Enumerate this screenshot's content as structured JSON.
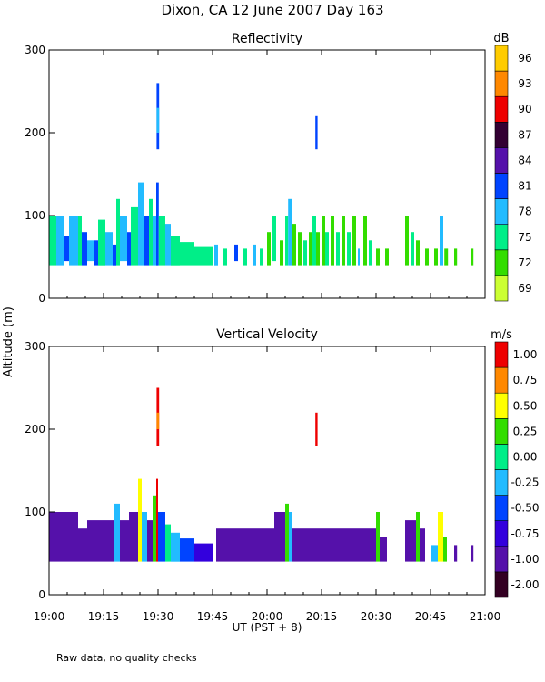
{
  "figure": {
    "title": "Dixon, CA 12 June 2007  Day 163",
    "xlabel": "UT  (PST + 8)",
    "ylabel": "Altitude (m)",
    "footnote": "Raw data, no quality checks"
  },
  "chart_data": [
    {
      "type": "heatmap",
      "title": "Reflectivity",
      "colorbar_label": "dB",
      "colorbar_ticks": [
        "69",
        "72",
        "75",
        "78",
        "81",
        "84",
        "87",
        "90",
        "93",
        "96"
      ],
      "colorbar_colors": [
        "#ccff33",
        "#33dd00",
        "#00ee88",
        "#22bbff",
        "#0044ff",
        "#5511aa",
        "#330033",
        "#ee0000",
        "#ff8800",
        "#ffcc00"
      ],
      "x_ticks": [
        "19:00",
        "19:15",
        "19:30",
        "19:45",
        "20:00",
        "20:15",
        "20:30",
        "20:45",
        "21:00"
      ],
      "x_range_min": [
        0,
        120
      ],
      "y_ticks": [
        "0",
        "100",
        "200",
        "300"
      ],
      "ylim": [
        0,
        300
      ],
      "cells": [
        [
          0,
          40,
          75,
          2,
          100
        ],
        [
          2,
          40,
          78,
          4,
          100
        ],
        [
          4,
          45,
          81,
          5.5,
          75
        ],
        [
          5.5,
          40,
          78,
          8,
          100
        ],
        [
          8,
          40,
          75,
          9,
          100
        ],
        [
          9,
          40,
          81,
          10.5,
          80
        ],
        [
          10.5,
          45,
          78,
          12.5,
          70
        ],
        [
          12.5,
          40,
          81,
          13.5,
          70
        ],
        [
          13.5,
          40,
          75,
          15.5,
          95
        ],
        [
          15.5,
          40,
          78,
          17.5,
          80
        ],
        [
          17.5,
          40,
          81,
          18.5,
          65
        ],
        [
          18.5,
          40,
          75,
          19.5,
          120
        ],
        [
          19.5,
          45,
          78,
          21.5,
          100
        ],
        [
          21.5,
          40,
          81,
          22.5,
          80
        ],
        [
          22.5,
          40,
          75,
          24.5,
          110
        ],
        [
          24.5,
          40,
          78,
          26,
          140
        ],
        [
          26,
          40,
          81,
          27.5,
          100
        ],
        [
          27.5,
          40,
          75,
          28.5,
          120
        ],
        [
          28.5,
          40,
          78,
          30,
          100
        ],
        [
          29.5,
          40,
          81,
          30.2,
          140
        ],
        [
          30.2,
          40,
          75,
          32,
          100
        ],
        [
          32,
          40,
          78,
          33.5,
          90
        ],
        [
          33.5,
          40,
          75,
          36,
          75
        ],
        [
          36,
          40,
          75,
          40,
          68
        ],
        [
          40,
          40,
          75,
          45,
          62
        ],
        [
          45.5,
          40,
          78,
          46.5,
          65
        ],
        [
          48,
          40,
          75,
          49,
          60
        ],
        [
          51,
          45,
          81,
          52,
          65
        ],
        [
          53.5,
          40,
          75,
          54.5,
          60
        ],
        [
          56,
          40,
          78,
          57,
          65
        ],
        [
          58,
          40,
          75,
          59,
          60
        ],
        [
          60,
          40,
          72,
          61,
          80
        ],
        [
          61.5,
          45,
          75,
          62.5,
          100
        ],
        [
          63.5,
          40,
          72,
          64.5,
          70
        ],
        [
          65,
          40,
          75,
          65.8,
          100
        ],
        [
          65.8,
          40,
          78,
          66.8,
          120
        ],
        [
          66.8,
          40,
          72,
          68,
          90
        ],
        [
          68.5,
          40,
          72,
          69.5,
          80
        ],
        [
          70,
          40,
          75,
          71,
          70
        ],
        [
          71.5,
          40,
          72,
          72.5,
          80
        ],
        [
          72.5,
          40,
          75,
          73.5,
          100
        ],
        [
          73.5,
          40,
          72,
          74.5,
          80
        ],
        [
          75,
          40,
          72,
          76,
          100
        ],
        [
          76,
          40,
          75,
          77,
          80
        ],
        [
          77.5,
          40,
          72,
          78.5,
          100
        ],
        [
          79,
          40,
          75,
          80,
          80
        ],
        [
          80.5,
          40,
          72,
          81.5,
          100
        ],
        [
          82,
          40,
          75,
          83,
          80
        ],
        [
          83.5,
          40,
          72,
          84.5,
          100
        ],
        [
          85,
          40,
          78,
          85.5,
          60
        ],
        [
          86.5,
          40,
          72,
          87.5,
          100
        ],
        [
          88,
          40,
          75,
          89,
          70
        ],
        [
          90,
          40,
          72,
          91,
          60
        ],
        [
          92.5,
          40,
          72,
          93.5,
          60
        ],
        [
          98,
          40,
          72,
          99,
          100
        ],
        [
          99.5,
          40,
          75,
          100.5,
          80
        ],
        [
          101,
          40,
          72,
          102,
          70
        ],
        [
          103.5,
          40,
          72,
          104.5,
          60
        ],
        [
          106,
          40,
          72,
          107,
          60
        ],
        [
          107.5,
          40,
          78,
          108.5,
          100
        ],
        [
          108.8,
          40,
          72,
          109.8,
          60
        ],
        [
          111.5,
          40,
          72,
          112.3,
          60
        ],
        [
          116,
          40,
          72,
          116.8,
          60
        ],
        [
          29.6,
          180,
          81,
          30.3,
          260
        ],
        [
          29.6,
          200,
          78,
          30.3,
          230
        ],
        [
          73.3,
          180,
          81,
          73.9,
          220
        ]
      ]
    },
    {
      "type": "heatmap",
      "title": "Vertical Velocity",
      "colorbar_label": "m/s",
      "colorbar_ticks": [
        "-2.00",
        "-1.00",
        "-0.75",
        "-0.50",
        "-0.25",
        "0.00",
        "0.25",
        "0.50",
        "0.75",
        "1.00"
      ],
      "colorbar_colors": [
        "#330022",
        "#5511aa",
        "#3300dd",
        "#0044ff",
        "#22bbff",
        "#00ee88",
        "#33dd00",
        "#ffff00",
        "#ff8800",
        "#ee0000"
      ],
      "x_ticks": [
        "19:00",
        "19:15",
        "19:30",
        "19:45",
        "20:00",
        "20:15",
        "20:30",
        "20:45",
        "21:00"
      ],
      "x_range_min": [
        0,
        120
      ],
      "y_ticks": [
        "0",
        "100",
        "200",
        "300"
      ],
      "ylim": [
        0,
        300
      ],
      "cells": [
        [
          0,
          40,
          -1.0,
          8,
          100
        ],
        [
          8,
          40,
          -1.0,
          10.5,
          80
        ],
        [
          10.5,
          40,
          -1.0,
          18,
          90
        ],
        [
          18,
          40,
          -0.25,
          19.5,
          110
        ],
        [
          19.5,
          40,
          -1.0,
          22,
          90
        ],
        [
          22,
          40,
          -1.0,
          24.5,
          100
        ],
        [
          24.5,
          40,
          0.5,
          25.5,
          140
        ],
        [
          25.5,
          40,
          -0.25,
          27,
          100
        ],
        [
          27,
          40,
          -1.0,
          28.5,
          90
        ],
        [
          28.5,
          40,
          0.25,
          29.5,
          120
        ],
        [
          29.5,
          40,
          1.0,
          30,
          140
        ],
        [
          30,
          40,
          -0.5,
          32,
          100
        ],
        [
          32,
          40,
          0.0,
          33.5,
          85
        ],
        [
          33.5,
          40,
          -0.25,
          36,
          75
        ],
        [
          36,
          40,
          -0.5,
          40,
          68
        ],
        [
          40,
          40,
          -0.75,
          45,
          62
        ],
        [
          46,
          40,
          -1.0,
          62,
          80
        ],
        [
          62,
          40,
          -1.0,
          65,
          100
        ],
        [
          65,
          40,
          0.25,
          66,
          110
        ],
        [
          66,
          40,
          -0.25,
          67,
          100
        ],
        [
          67,
          40,
          -1.0,
          78,
          80
        ],
        [
          78,
          40,
          -1.0,
          90,
          80
        ],
        [
          90,
          40,
          0.25,
          91,
          100
        ],
        [
          91,
          40,
          -1.0,
          93,
          70
        ],
        [
          98,
          40,
          -1.0,
          101,
          90
        ],
        [
          101,
          40,
          0.25,
          102,
          100
        ],
        [
          102,
          40,
          -1.0,
          103.5,
          80
        ],
        [
          105,
          40,
          -0.25,
          107,
          60
        ],
        [
          107,
          40,
          0.5,
          108.5,
          100
        ],
        [
          108.5,
          40,
          0.25,
          109.5,
          70
        ],
        [
          111.5,
          40,
          -1.0,
          112.3,
          60
        ],
        [
          116,
          40,
          -1.0,
          116.8,
          60
        ],
        [
          29.6,
          180,
          1.0,
          30.3,
          250
        ],
        [
          29.6,
          200,
          0.75,
          30.3,
          220
        ],
        [
          73.3,
          180,
          1.0,
          73.9,
          220
        ]
      ]
    }
  ]
}
